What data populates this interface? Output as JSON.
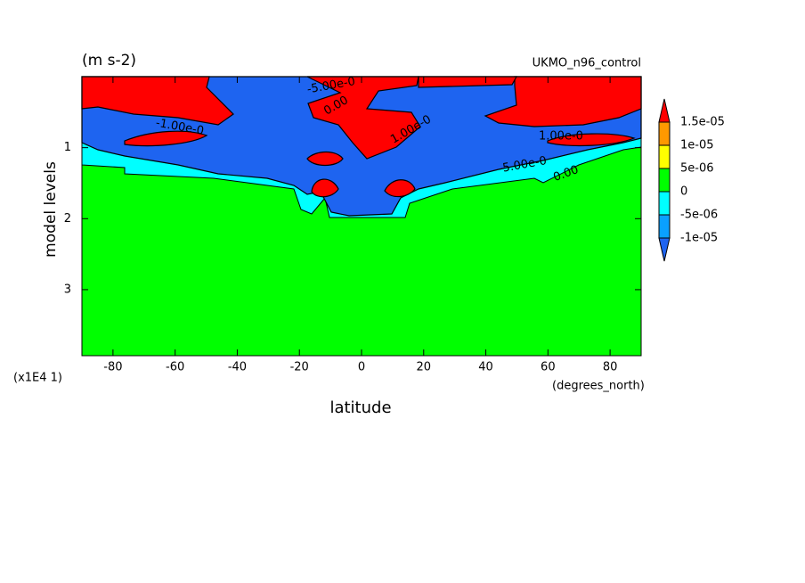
{
  "chart_data": {
    "type": "contour",
    "title": "(m s-2)",
    "subtitle": "UKMO_n96_control",
    "x_label": "latitude",
    "x_units": "(degrees_north)",
    "y_label": "model levels",
    "y_multiplier": "(x1E4 1)",
    "xlim": [
      -90,
      90
    ],
    "xticks": [
      -80,
      -60,
      -40,
      -20,
      0,
      20,
      40,
      60,
      80
    ],
    "ylim": [
      0,
      3.93
    ],
    "y_reversed": true,
    "yticks": [
      1,
      2,
      3
    ],
    "levels": [
      {
        "value": -1e-05,
        "label": "-1e-05"
      },
      {
        "value": -5e-06,
        "label": "-5e-06"
      },
      0,
      {
        "value": 5e-06,
        "label": "5e-06"
      },
      {
        "value": 1e-05,
        "label": "1e-05"
      },
      {
        "value": 1.5e-05,
        "label": "1.5e-05"
      }
    ],
    "colors": [
      "#1e64f0",
      "#0aa0ff",
      "#00ffff",
      "#00ff00",
      "#ffff00",
      "#ff9900",
      "#ff0000"
    ],
    "contour_labels": [
      "-5.00e-0",
      "1.00e-0",
      "0.00",
      "-1.00e-0",
      "-5.00e-0",
      "1.00e-0",
      "0.00"
    ]
  }
}
